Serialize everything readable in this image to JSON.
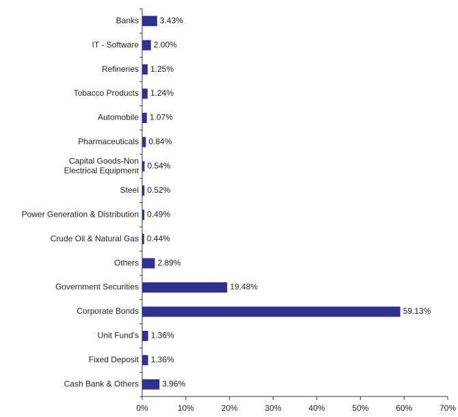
{
  "chart_data": {
    "type": "hbar",
    "categories": [
      "Banks",
      "IT - Software",
      "Refineries",
      "Tobacco Products",
      "Automobile",
      "Pharmaceuticals",
      "Capital Goods-Non\nElectrical Equipment",
      "Steel",
      "Power Generation & Distribution",
      "Crude Oil & Natural Gas",
      "Others",
      "Government Securities",
      "Corporate Bonds",
      "Unit Fund's",
      "Fixed Deposit",
      "Cash Bank & Others"
    ],
    "values": [
      3.43,
      2.0,
      1.25,
      1.24,
      1.07,
      0.84,
      0.54,
      0.52,
      0.49,
      0.44,
      2.89,
      19.48,
      59.13,
      1.36,
      1.36,
      3.96
    ],
    "value_labels": [
      "3.43%",
      "2.00%",
      "1.25%",
      "1.24%",
      "1.07%",
      "0.84%",
      "0.54%",
      "0.52%",
      "0.49%",
      "0.44%",
      "2.89%",
      "19.48%",
      "59.13%",
      "1.36%",
      "1.36%",
      "3.96%"
    ],
    "color": "#2e3192",
    "xlim": [
      0,
      70
    ],
    "xticks": [
      {
        "value": 0,
        "label": "0%"
      },
      {
        "value": 10,
        "label": "10%"
      },
      {
        "value": 20,
        "label": "20%"
      },
      {
        "value": 30,
        "label": "30%"
      },
      {
        "value": 40,
        "label": "40%"
      },
      {
        "value": 50,
        "label": "50%"
      },
      {
        "value": 60,
        "label": "60%"
      },
      {
        "value": 70,
        "label": "70%"
      }
    ],
    "grid": false
  }
}
